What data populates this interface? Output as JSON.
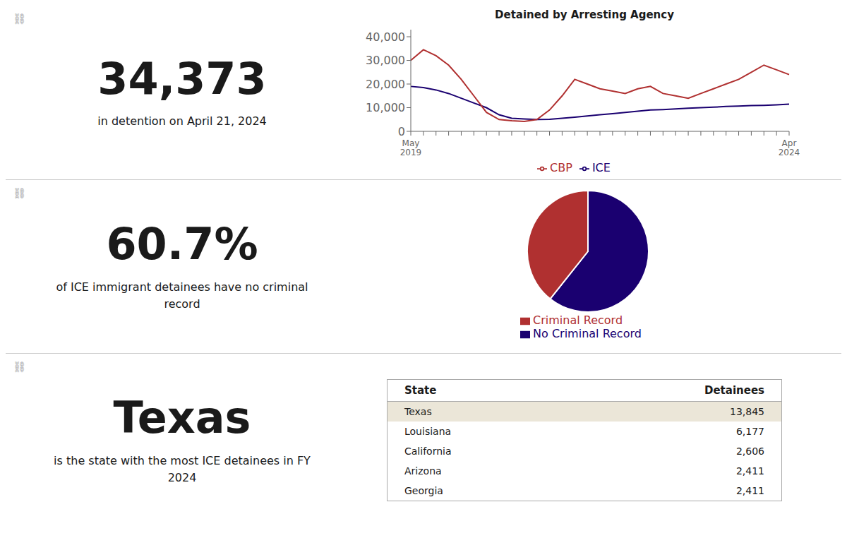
{
  "chart_data": [
    {
      "type": "line",
      "annotation": "⛓",
      "headline": "34,373",
      "subtitle": [
        "in detention on April 21, 2024"
      ],
      "title": "Detained by Arresting Agency",
      "categories": [
        "May\n2019",
        null,
        null,
        null,
        null,
        null,
        null,
        null,
        null,
        null,
        null,
        null,
        null,
        null,
        null,
        null,
        null,
        null,
        null,
        null,
        null,
        null,
        null,
        null,
        null,
        null,
        null,
        null,
        null,
        null,
        "Apr\n2024"
      ],
      "series": [
        {
          "name": "ICE",
          "color": "#1a0070",
          "values": [
            19000,
            18500,
            17500,
            16000,
            14000,
            12000,
            10000,
            7000,
            5500,
            5200,
            5000,
            5100,
            5500,
            6000,
            6500,
            7000,
            7500,
            8000,
            8500,
            9000,
            9200,
            9500,
            9800,
            10000,
            10200,
            10500,
            10700,
            10900,
            11000,
            11200,
            11500
          ]
        },
        {
          "name": "CBP",
          "color": "#b03030",
          "values": [
            30000,
            34500,
            32000,
            28000,
            22000,
            15000,
            8000,
            5000,
            4500,
            4200,
            5000,
            9000,
            15000,
            22000,
            20000,
            18000,
            17000,
            16000,
            18000,
            19000,
            16000,
            15000,
            14000,
            16000,
            18000,
            20000,
            22000,
            25000,
            28000,
            26000,
            24000
          ]
        }
      ],
      "ylim": [
        0,
        43000
      ],
      "yticks": [
        0,
        {
          "value": 10000,
          "label": "10,000"
        },
        {
          "value": 20000,
          "label": "20,000"
        },
        {
          "value": 30000,
          "label": "30,000"
        },
        {
          "value": 40000,
          "label": "40,000"
        }
      ]
    },
    {
      "type": "pie",
      "annotation": "⛓",
      "headline": "60.7%",
      "subtitle": [
        "of ICE immigrant detainees have no criminal",
        "record"
      ],
      "categories": [
        "No Criminal Record",
        "Criminal Record"
      ],
      "values": [
        60.7,
        39.3
      ],
      "colors": [
        "#1a0070",
        "#b03030"
      ]
    },
    {
      "type": "table",
      "annotation": "⛓",
      "headline": "Texas",
      "subtitle": [
        "is the state with the most ICE detainees in FY",
        "2024"
      ],
      "headers": [
        "State",
        "Detainees"
      ],
      "categories": [
        "Texas",
        "Louisiana",
        "California",
        "Arizona",
        "Georgia"
      ],
      "values": [
        13845,
        6177,
        2606,
        2411,
        2411
      ],
      "value_labels": [
        "13,845",
        "6,177",
        "2,606",
        "2,411",
        "2,411"
      ]
    }
  ]
}
